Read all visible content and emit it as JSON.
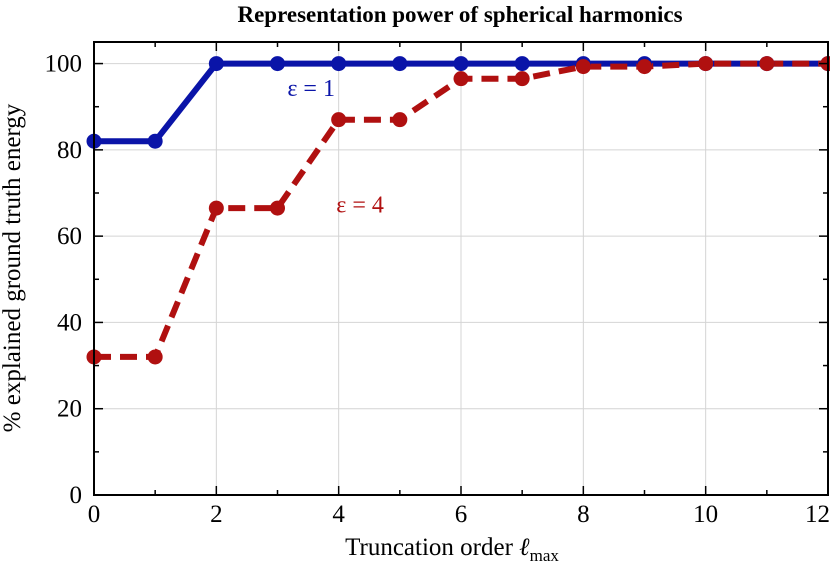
{
  "chart_data": {
    "type": "line",
    "title": "Representation power of spherical harmonics",
    "xlabel": "Truncation order",
    "xlabel_symbol": "ℓ",
    "xlabel_subscript": "max",
    "ylabel": "% explained ground truth energy",
    "xlim": [
      0,
      12
    ],
    "ylim": [
      0,
      105
    ],
    "xticks": [
      0,
      2,
      4,
      6,
      8,
      10,
      12
    ],
    "yticks": [
      0,
      20,
      40,
      60,
      80,
      100
    ],
    "xtick_labels": [
      "0",
      "2",
      "4",
      "6",
      "8",
      "10",
      "12"
    ],
    "ytick_labels": [
      "0",
      "20",
      "40",
      "60",
      "80",
      "100"
    ],
    "grid": true,
    "series": [
      {
        "name": "ε = 1",
        "color": "#0a14a8",
        "line_style": "solid",
        "x": [
          0,
          1,
          2,
          3,
          4,
          5,
          6,
          7,
          8,
          9,
          10,
          11,
          12
        ],
        "y": [
          82,
          82,
          100,
          100,
          100,
          100,
          100,
          100,
          100,
          100,
          100,
          100,
          100
        ]
      },
      {
        "name": "ε = 4",
        "color": "#b01010",
        "line_style": "dashed",
        "x": [
          0,
          1,
          2,
          3,
          4,
          5,
          6,
          7,
          8,
          9,
          10,
          11,
          12
        ],
        "y": [
          32,
          32,
          66.5,
          66.5,
          87,
          87,
          96.5,
          96.5,
          99.3,
          99.3,
          100,
          100,
          100
        ]
      }
    ],
    "annotations": [
      {
        "text": "ε = 1",
        "x": 3.55,
        "y": 92.5,
        "color": "#0a14a8"
      },
      {
        "text": "ε = 4",
        "x": 4.35,
        "y": 65.5,
        "color": "#b01010"
      }
    ]
  }
}
